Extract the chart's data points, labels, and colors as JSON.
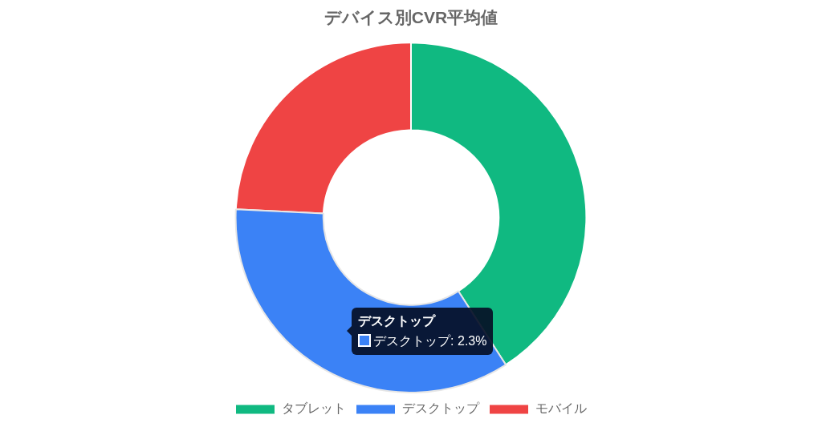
{
  "chart_data": {
    "type": "donut",
    "title": "デバイス別CVR平均値",
    "categories": [
      "タブレット",
      "デスクトップ",
      "モバイル"
    ],
    "values": [
      2.7,
      2.3,
      1.6
    ],
    "colors": [
      "#10b981",
      "#3b82f6",
      "#ef4444"
    ],
    "value_labels": [
      null,
      "デスクトップ: 2.3%",
      null
    ],
    "legend": "bottom"
  }
}
